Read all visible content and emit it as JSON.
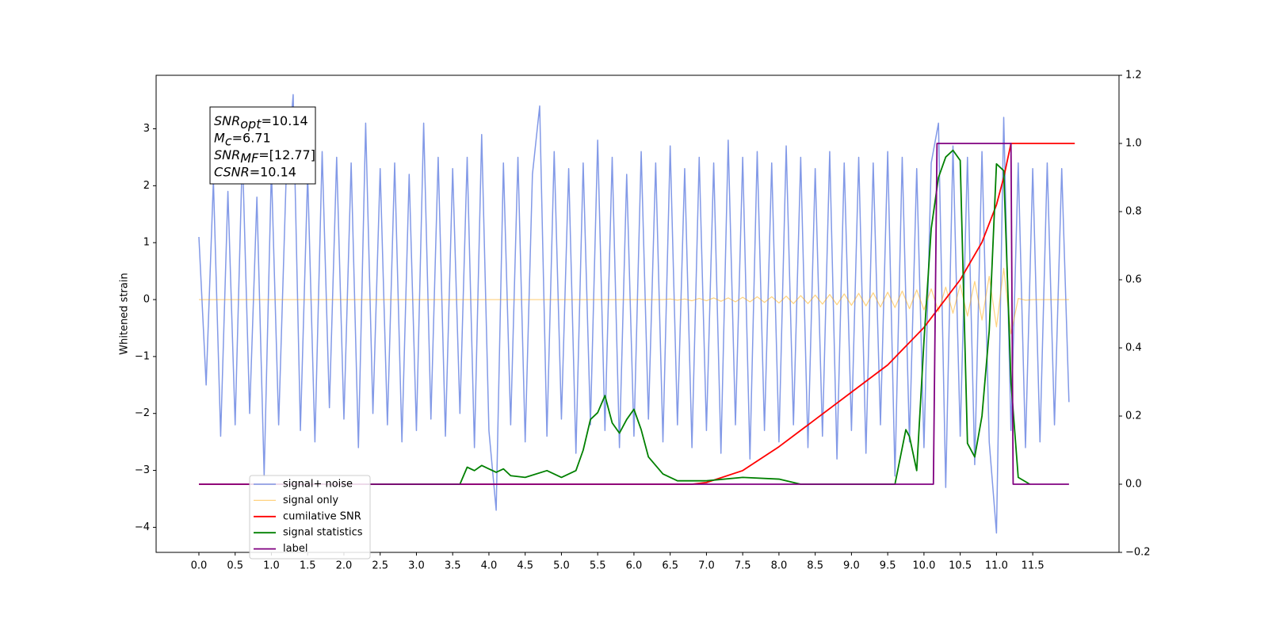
{
  "chart_data": {
    "type": "line",
    "y_label": "Whitened strain",
    "annotation": [
      {
        "symbol": "SNR",
        "subscript": "opt",
        "text": "=10.14"
      },
      {
        "symbol": "M",
        "subscript": "c",
        "text": "=6.71"
      },
      {
        "symbol": "SNR",
        "subscript": "MF",
        "text": "=[12.77]"
      },
      {
        "symbol": "CSNR",
        "text": "=10.14"
      }
    ],
    "xlim": [
      -0.59,
      12.69
    ],
    "ylim": [
      -4.44,
      3.94
    ],
    "y2lim": [
      -0.2,
      1.2
    ],
    "xticks": [
      {
        "value": 0,
        "label": "0.0"
      },
      0.5,
      {
        "value": 1,
        "label": "1.0"
      },
      1.5,
      {
        "value": 2,
        "label": "2.0"
      },
      2.5,
      {
        "value": 3,
        "label": "3.0"
      },
      3.5,
      {
        "value": 4,
        "label": "4.0"
      },
      4.5,
      {
        "value": 5,
        "label": "5.0"
      },
      5.5,
      {
        "value": 6,
        "label": "6.0"
      },
      6.5,
      {
        "value": 7,
        "label": "7.0"
      },
      7.5,
      {
        "value": 8,
        "label": "8.0"
      },
      8.5,
      {
        "value": 9,
        "label": "9.0"
      },
      9.5,
      {
        "value": 10,
        "label": "10.0"
      },
      10.5,
      {
        "value": 11,
        "label": "11.0"
      },
      11.5
    ],
    "yticks": [
      {
        "value": -4,
        "label": "−4"
      },
      {
        "value": -3,
        "label": "−3"
      },
      {
        "value": -2,
        "label": "−2"
      },
      {
        "value": -1,
        "label": "−1"
      },
      0,
      1,
      2,
      3
    ],
    "y2ticks": [
      {
        "value": -0.2,
        "label": "−0.2"
      },
      {
        "value": 0,
        "label": "0.0"
      },
      0.2,
      0.4,
      0.6,
      0.8,
      {
        "value": 1,
        "label": "1.0"
      },
      1.2
    ],
    "legend": "lower left",
    "x": [
      0,
      0.1,
      0.2,
      0.3,
      0.4,
      0.5,
      0.6,
      0.7,
      0.8,
      0.9,
      1,
      1.1,
      1.2,
      1.3,
      1.4,
      1.5,
      1.6,
      1.7,
      1.8,
      1.9,
      2,
      2.1,
      2.2,
      2.3,
      2.4,
      2.5,
      2.6,
      2.7,
      2.8,
      2.9,
      3,
      3.1,
      3.2,
      3.3,
      3.4,
      3.5,
      3.6,
      3.7,
      3.8,
      3.9,
      4,
      4.1,
      4.2,
      4.3,
      4.4,
      4.5,
      4.6,
      4.7,
      4.8,
      4.9,
      5,
      5.1,
      5.2,
      5.3,
      5.4,
      5.5,
      5.6,
      5.7,
      5.8,
      5.9,
      6,
      6.1,
      6.2,
      6.3,
      6.4,
      6.5,
      6.6,
      6.7,
      6.8,
      6.9,
      7,
      7.1,
      7.2,
      7.3,
      7.4,
      7.5,
      7.6,
      7.7,
      7.8,
      7.9,
      8,
      8.1,
      8.2,
      8.3,
      8.4,
      8.5,
      8.6,
      8.7,
      8.8,
      8.9,
      9,
      9.1,
      9.2,
      9.3,
      9.4,
      9.5,
      9.6,
      9.7,
      9.8,
      9.9,
      10,
      10.1,
      10.2,
      10.3,
      10.4,
      10.5,
      10.6,
      10.7,
      10.8,
      10.9,
      11,
      11.1,
      11.2,
      11.3,
      11.4,
      11.5,
      11.6,
      11.7,
      11.8,
      11.9,
      12
    ],
    "series": [
      {
        "name": "signal+ noise",
        "color": "#7b93e6",
        "axis": "y",
        "values": [
          1.1,
          -1.5,
          2.1,
          -2.4,
          1.9,
          -2.2,
          2.6,
          -2.0,
          1.8,
          -3.1,
          2.3,
          -2.2,
          2.0,
          3.6,
          -2.3,
          2.2,
          -2.5,
          2.6,
          -1.9,
          2.5,
          -2.1,
          2.4,
          -2.6,
          3.1,
          -2.0,
          2.3,
          -2.2,
          2.4,
          -2.5,
          2.2,
          -2.3,
          3.1,
          -2.1,
          2.5,
          -2.4,
          2.3,
          -2.0,
          2.5,
          -2.6,
          2.9,
          -2.3,
          -3.7,
          2.4,
          -2.2,
          2.5,
          -2.5,
          2.2,
          3.4,
          -2.4,
          2.6,
          -2.1,
          2.3,
          -2.7,
          2.4,
          -2.2,
          2.8,
          -2.3,
          2.5,
          -2.6,
          2.2,
          -2.4,
          2.6,
          -2.1,
          2.4,
          -2.5,
          2.7,
          -2.2,
          2.3,
          -2.6,
          2.5,
          -2.3,
          2.4,
          -2.7,
          2.8,
          -2.2,
          2.5,
          -2.8,
          2.6,
          -2.3,
          2.4,
          -2.5,
          2.7,
          -2.2,
          2.5,
          -2.6,
          2.3,
          -2.4,
          2.6,
          -2.8,
          2.4,
          -2.3,
          2.5,
          -2.7,
          2.4,
          -2.2,
          2.6,
          -3.1,
          2.5,
          -2.5,
          2.3,
          -2.6,
          2.4,
          3.1,
          -3.3,
          2.7,
          -2.4,
          2.5,
          -2.9,
          2.6,
          -2.5,
          -4.1,
          3.2,
          -2.3,
          2.4,
          -2.6,
          2.3,
          -2.5,
          2.4,
          -2.2,
          2.3,
          -1.8
        ]
      },
      {
        "name": "signal only",
        "color": "#ffa500",
        "axis": "y",
        "values": [
          0,
          0,
          0,
          0,
          0,
          0,
          0,
          0,
          0,
          0,
          0,
          0,
          0,
          0,
          0,
          0,
          0,
          0,
          0,
          0,
          0,
          0,
          0,
          0,
          0,
          0,
          0,
          0,
          0,
          0,
          0,
          0,
          0,
          0,
          0,
          0,
          0,
          0,
          0,
          0,
          0,
          0,
          0,
          0,
          0,
          0,
          0,
          0,
          0,
          0,
          0,
          0,
          0,
          0,
          0,
          0,
          0,
          0,
          0,
          0,
          0,
          0,
          0,
          0,
          0,
          0.01,
          -0.01,
          0.01,
          -0.02,
          0.02,
          -0.02,
          0.03,
          -0.03,
          0.03,
          -0.04,
          0.04,
          -0.04,
          0.05,
          -0.05,
          0.05,
          -0.06,
          0.06,
          -0.07,
          0.07,
          -0.07,
          0.08,
          -0.08,
          0.09,
          -0.09,
          0.1,
          -0.1,
          0.11,
          -0.11,
          0.12,
          -0.13,
          0.13,
          -0.14,
          0.15,
          -0.16,
          0.17,
          -0.18,
          0.19,
          -0.21,
          0.22,
          -0.24,
          0.26,
          -0.29,
          0.32,
          -0.36,
          0.41,
          -0.48,
          0.55,
          -0.6,
          0.02,
          -0.01,
          0,
          0,
          0,
          0,
          0,
          0
        ]
      },
      {
        "name": "cumilative SNR",
        "color": "#ff0000",
        "axis": "y2",
        "x": [
          0,
          6.5,
          6.8,
          7.0,
          7.5,
          8.0,
          8.5,
          9.0,
          9.5,
          10.0,
          10.5,
          10.8,
          11.0,
          11.1,
          11.2,
          12.08
        ],
        "values": [
          0,
          0,
          0,
          0.005,
          0.04,
          0.11,
          0.19,
          0.27,
          0.35,
          0.46,
          0.6,
          0.71,
          0.82,
          0.9,
          1,
          1
        ]
      },
      {
        "name": "signal statistics",
        "color": "#008000",
        "axis": "y2",
        "x": [
          2.3,
          3.6,
          3.7,
          3.8,
          3.9,
          4.0,
          4.1,
          4.2,
          4.3,
          4.5,
          4.8,
          5.0,
          5.2,
          5.3,
          5.4,
          5.5,
          5.6,
          5.7,
          5.8,
          5.9,
          6.0,
          6.1,
          6.2,
          6.4,
          6.6,
          7.0,
          7.5,
          8.0,
          8.3,
          9.6,
          9.75,
          9.8,
          9.9,
          10.0,
          10.1,
          10.2,
          10.3,
          10.4,
          10.5,
          10.6,
          10.7,
          10.8,
          10.9,
          11.0,
          11.1,
          11.2,
          11.3,
          11.46
        ],
        "values": [
          0,
          0,
          0.05,
          0.04,
          0.055,
          0.045,
          0.035,
          0.045,
          0.025,
          0.02,
          0.04,
          0.02,
          0.04,
          0.1,
          0.19,
          0.21,
          0.26,
          0.18,
          0.15,
          0.19,
          0.22,
          0.16,
          0.08,
          0.03,
          0.01,
          0.01,
          0.02,
          0.015,
          0,
          0,
          0.16,
          0.14,
          0.04,
          0.42,
          0.75,
          0.9,
          0.96,
          0.98,
          0.95,
          0.12,
          0.08,
          0.2,
          0.45,
          0.94,
          0.92,
          0.3,
          0.02,
          0
        ]
      },
      {
        "name": "label",
        "color": "#800080",
        "axis": "y2",
        "x": [
          0,
          10.13,
          10.18,
          11.2,
          11.23,
          12.0
        ],
        "values": [
          0,
          0,
          1,
          1,
          0,
          0
        ]
      }
    ]
  }
}
